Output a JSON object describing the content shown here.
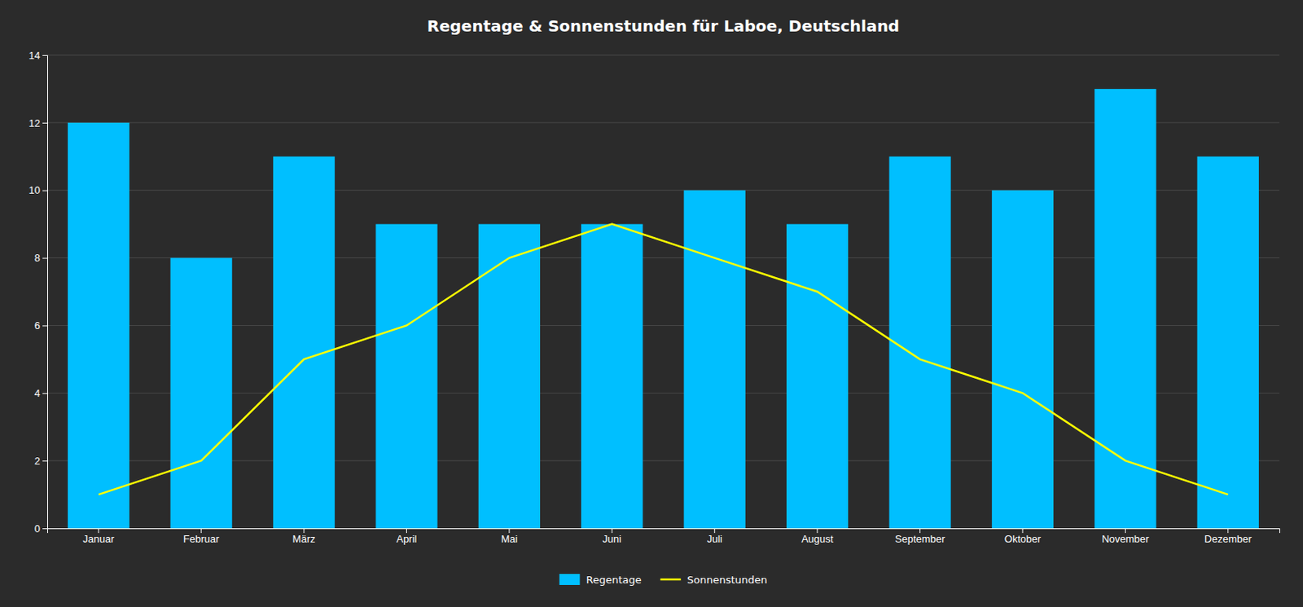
{
  "chart_data": {
    "type": "bar",
    "title": "Regentage & Sonnenstunden für Laboe, Deutschland",
    "categories": [
      "Januar",
      "Februar",
      "März",
      "April",
      "Mai",
      "Juni",
      "Juli",
      "August",
      "September",
      "Oktober",
      "November",
      "Dezember"
    ],
    "series": [
      {
        "name": "Regentage",
        "type": "bar",
        "color": "#00BFFF",
        "values": [
          12,
          8,
          11,
          9,
          9,
          9,
          10,
          9,
          11,
          10,
          13,
          11
        ]
      },
      {
        "name": "Sonnenstunden",
        "type": "line",
        "color": "#FFFF00",
        "values": [
          1,
          2,
          5,
          6,
          8,
          9,
          8,
          7,
          5,
          4,
          2,
          1
        ]
      }
    ],
    "ylim": [
      0,
      14
    ],
    "yticks": [
      0,
      2,
      4,
      6,
      8,
      10,
      12,
      14
    ],
    "grid": true,
    "legend": "bottom"
  }
}
